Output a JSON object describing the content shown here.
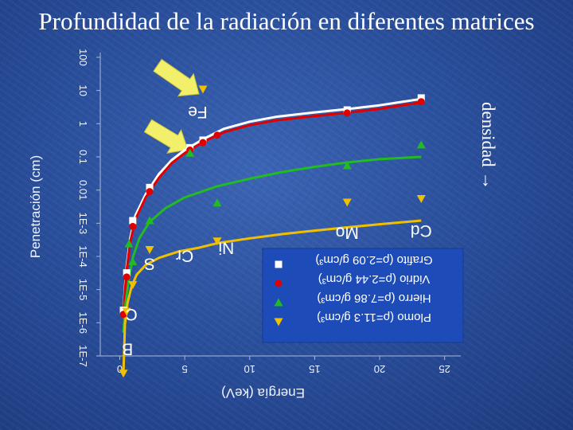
{
  "slide": {
    "title": "Profundidad de la radiación en diferentes matrices",
    "annotation": "densidad →"
  },
  "colors": {
    "background": "#2a4f9c",
    "legend_box": "#1d4cb8",
    "arrow": "#f2f06a"
  },
  "chart_data": {
    "type": "line",
    "title": "",
    "xlabel": "Energía (keV)",
    "ylabel": "Penetración (cm)",
    "xlim": [
      -1.5,
      26
    ],
    "xticks": [
      "0",
      "5",
      "10",
      "15",
      "20",
      "25"
    ],
    "xtick_values": [
      0,
      5,
      10,
      15,
      20,
      25
    ],
    "yscale": "log",
    "ylim": [
      1e-07,
      100
    ],
    "yticks": [
      "100",
      "10",
      "1",
      "0.1",
      "0.01",
      "1E-3",
      "1E-4",
      "1E-5",
      "1E-6",
      "1E-7"
    ],
    "ytick_values": [
      100,
      10,
      1,
      0.1,
      0.01,
      0.001,
      0.0001,
      1e-05,
      1e-06,
      1e-07
    ],
    "grid": false,
    "legend_position": "bottom-right",
    "series": [
      {
        "name": "Grafito (ρ=2.09 g/cm³)",
        "color": "#ffffff",
        "marker": "square",
        "points": [
          [
            0.28,
            2.4e-06
          ],
          [
            0.53,
            3.2e-05
          ],
          [
            1.0,
            0.0012
          ],
          [
            2.3,
            0.012
          ],
          [
            5.4,
            0.19
          ],
          [
            6.4,
            0.32
          ],
          [
            17.5,
            2.6
          ],
          [
            23.2,
            6.0
          ]
        ],
        "curve": [
          [
            0.28,
            2.4e-06
          ],
          [
            0.4,
            1.2e-05
          ],
          [
            0.55,
            6e-05
          ],
          [
            0.8,
            0.00035
          ],
          [
            1.2,
            0.0017
          ],
          [
            2.0,
            0.0075
          ],
          [
            3.0,
            0.03
          ],
          [
            4.0,
            0.08
          ],
          [
            5.0,
            0.16
          ],
          [
            6.4,
            0.34
          ],
          [
            8.0,
            0.7
          ],
          [
            10.0,
            1.15
          ],
          [
            12.0,
            1.6
          ],
          [
            15.0,
            2.2
          ],
          [
            17.5,
            2.75
          ],
          [
            20.0,
            3.6
          ],
          [
            23.2,
            5.6
          ]
        ]
      },
      {
        "name": "Vidrio (ρ=2.44 g/cm³)",
        "color": "#e00000",
        "marker": "circle",
        "points": [
          [
            0.28,
            1.8e-06
          ],
          [
            0.53,
            2.4e-05
          ],
          [
            1.0,
            0.0008
          ],
          [
            2.3,
            0.009
          ],
          [
            5.4,
            0.16
          ],
          [
            6.4,
            0.27
          ],
          [
            7.5,
            0.45
          ],
          [
            17.5,
            2.1
          ],
          [
            23.2,
            4.6
          ]
        ],
        "curve": [
          [
            0.28,
            1.8e-06
          ],
          [
            0.4,
            9e-06
          ],
          [
            0.55,
            4.5e-05
          ],
          [
            0.8,
            0.00027
          ],
          [
            1.2,
            0.0013
          ],
          [
            2.0,
            0.006
          ],
          [
            3.0,
            0.023
          ],
          [
            4.0,
            0.065
          ],
          [
            5.0,
            0.13
          ],
          [
            6.4,
            0.28
          ],
          [
            8.0,
            0.55
          ],
          [
            10.0,
            0.9
          ],
          [
            12.0,
            1.25
          ],
          [
            15.0,
            1.7
          ],
          [
            17.5,
            2.15
          ],
          [
            20.0,
            2.8
          ],
          [
            23.2,
            4.4
          ]
        ]
      },
      {
        "name": "Hierro (ρ=7.86 g/cm³)",
        "color": "#22bb22",
        "marker": "triangle-up",
        "points": [
          [
            0.71,
            0.00024
          ],
          [
            1.0,
            7e-05
          ],
          [
            2.3,
            0.0012
          ],
          [
            5.4,
            0.13
          ],
          [
            7.5,
            0.0041
          ],
          [
            17.5,
            0.055
          ],
          [
            23.2,
            0.23
          ]
        ],
        "curve": [
          [
            0.28,
            5e-07
          ],
          [
            0.45,
            4e-06
          ],
          [
            0.7,
            2e-05
          ],
          [
            1.0,
            9e-05
          ],
          [
            1.5,
            0.00035
          ],
          [
            2.3,
            0.0011
          ],
          [
            3.5,
            0.0028
          ],
          [
            5.0,
            0.006
          ],
          [
            7.5,
            0.013
          ],
          [
            10.0,
            0.022
          ],
          [
            12.5,
            0.035
          ],
          [
            15.0,
            0.05
          ],
          [
            17.5,
            0.068
          ],
          [
            20.0,
            0.085
          ],
          [
            23.2,
            0.1
          ]
        ]
      },
      {
        "name": "Plomo (ρ=11.3 g/cm³)",
        "color": "#f0c000",
        "marker": "triangle-down",
        "points": [
          [
            0.28,
            3e-08
          ],
          [
            0.53,
            2.2e-06
          ],
          [
            1.0,
            1.4e-05
          ],
          [
            2.3,
            0.00016
          ],
          [
            6.4,
            11
          ],
          [
            7.5,
            0.00029
          ],
          [
            17.5,
            0.0043
          ],
          [
            23.2,
            0.0055
          ]
        ],
        "curve": [
          [
            0.28,
            3e-08
          ],
          [
            0.4,
            9e-07
          ],
          [
            0.6,
            4e-06
          ],
          [
            0.9,
            1.2e-05
          ],
          [
            1.3,
            2.8e-05
          ],
          [
            2.0,
            5.5e-05
          ],
          [
            3.0,
            9e-05
          ],
          [
            4.5,
            0.00014
          ],
          [
            6.0,
            0.00018
          ],
          [
            7.5,
            0.00025
          ],
          [
            10.0,
            0.00035
          ],
          [
            12.5,
            0.00047
          ],
          [
            15.0,
            0.0006
          ],
          [
            17.5,
            0.00075
          ],
          [
            20.0,
            0.00093
          ],
          [
            23.2,
            0.0012
          ]
        ]
      }
    ],
    "annotations": [
      {
        "text": "Fe",
        "x": 6.0,
        "y": 1.5
      },
      {
        "text": "Cr",
        "x": 5.0,
        "y": 7e-05
      },
      {
        "text": "Ni",
        "x": 8.2,
        "y": 0.00012
      },
      {
        "text": "S",
        "x": 2.3,
        "y": 4e-05
      },
      {
        "text": "C",
        "x": 0.9,
        "y": 1.2e-06
      },
      {
        "text": "B",
        "x": 0.6,
        "y": 1.1e-07
      },
      {
        "text": "Mo",
        "x": 17.5,
        "y": 0.00035
      },
      {
        "text": "Cd",
        "x": 23.2,
        "y": 0.0004
      }
    ]
  }
}
